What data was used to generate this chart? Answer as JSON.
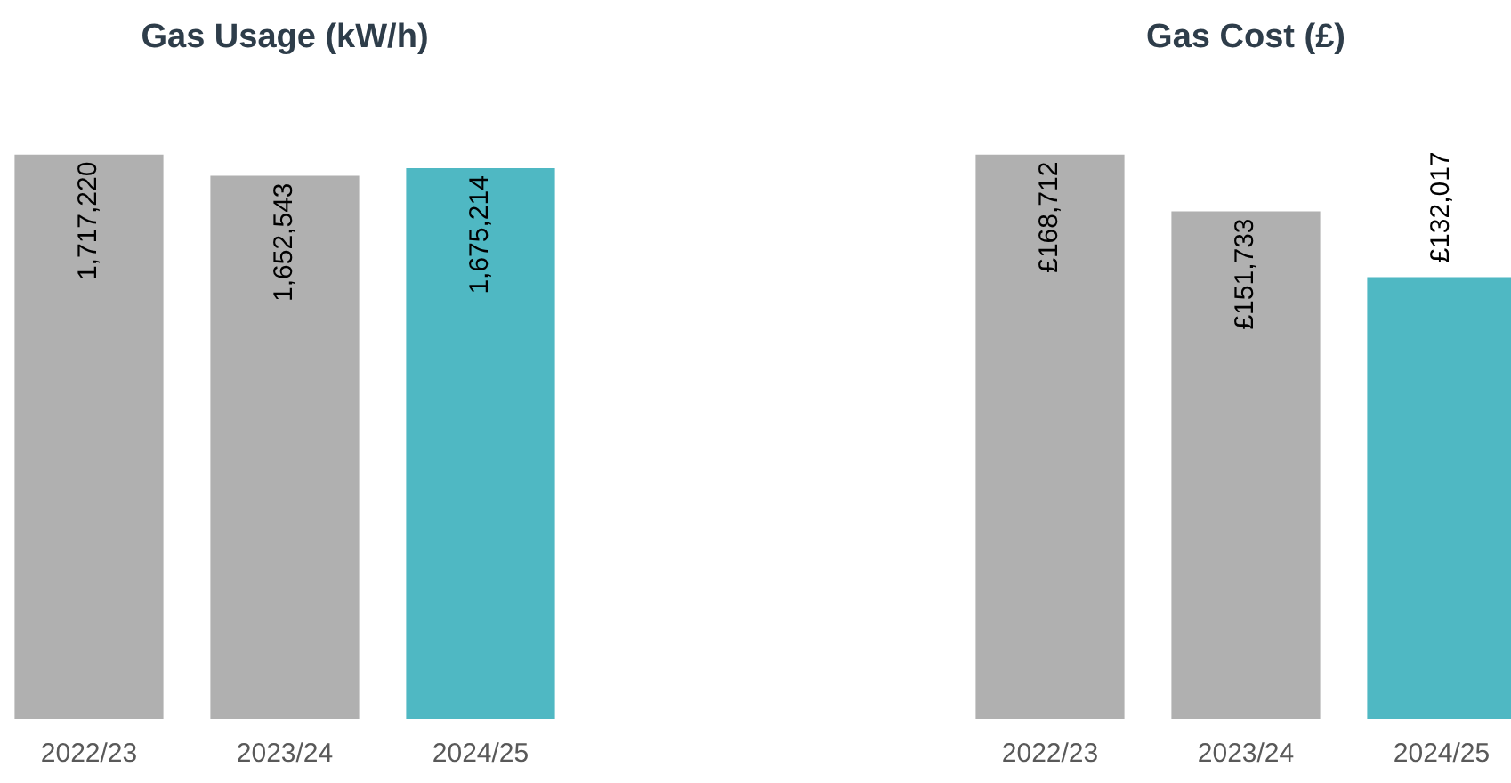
{
  "chart_data": [
    {
      "type": "bar",
      "title": "Gas Usage (kW/h)",
      "categories": [
        "2022/23",
        "2023/24",
        "2024/25"
      ],
      "values": [
        1717220,
        1652543,
        1675214
      ],
      "colors": [
        "#b0b0b0",
        "#b0b0b0",
        "#4fb8c3"
      ],
      "value_labels": [
        "1,717,220",
        "1,652,543",
        "1,675,214"
      ]
    },
    {
      "type": "bar",
      "title": "Gas Cost (£)",
      "categories": [
        "2022/23",
        "2023/24",
        "2024/25"
      ],
      "values": [
        168712,
        151733,
        132017
      ],
      "colors": [
        "#b0b0b0",
        "#b0b0b0",
        "#4fb8c3"
      ],
      "value_labels": [
        "£168,712",
        "£151,733",
        "£132,017"
      ]
    }
  ]
}
